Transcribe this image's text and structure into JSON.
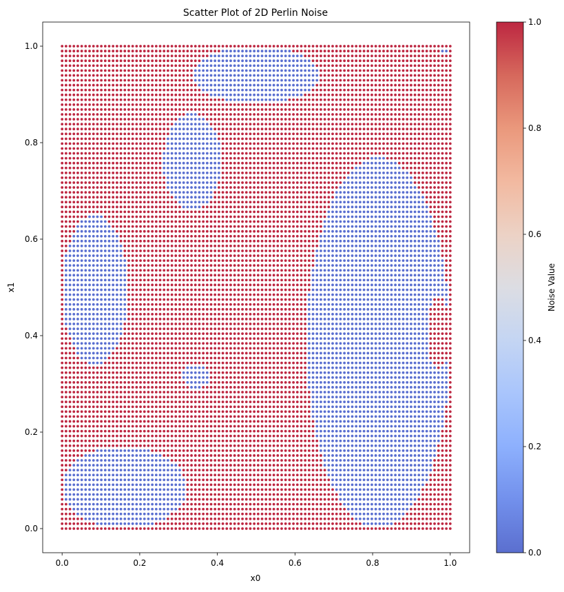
{
  "chart_data": {
    "type": "scatter",
    "title": "Scatter Plot of 2D Perlin Noise",
    "xlabel": "x0",
    "ylabel": "x1",
    "xlim": [
      -0.05,
      1.05
    ],
    "ylim": [
      -0.05,
      1.05
    ],
    "x_ticks": [
      0.0,
      0.2,
      0.4,
      0.6,
      0.8,
      1.0
    ],
    "y_ticks": [
      0.0,
      0.2,
      0.4,
      0.6,
      0.8,
      1.0
    ],
    "x_tick_labels": [
      "0.0",
      "0.2",
      "0.4",
      "0.6",
      "0.8",
      "1.0"
    ],
    "y_tick_labels": [
      "0.0",
      "0.2",
      "0.4",
      "0.6",
      "0.8",
      "1.0"
    ],
    "grid": false,
    "grid_points_per_axis": 100,
    "point_domain": [
      0.0,
      1.0
    ],
    "value_levels": [
      0,
      1
    ],
    "colormap": "coolwarm",
    "colormap_endpoints": {
      "low": "#5a6fd0",
      "high": "#bd2741"
    },
    "colorbar": {
      "label": "Noise Value",
      "range": [
        0.0,
        1.0
      ],
      "ticks": [
        0.0,
        0.2,
        0.4,
        0.6,
        0.8,
        1.0
      ],
      "tick_labels": [
        "0.0",
        "0.2",
        "0.4",
        "0.6",
        "0.8",
        "1.0"
      ]
    },
    "blue_regions_approx": [
      {
        "shape": "blob",
        "x_range": [
          0.34,
          0.66
        ],
        "y_range": [
          0.88,
          1.0
        ]
      },
      {
        "shape": "blob",
        "x_range": [
          0.26,
          0.41
        ],
        "y_range": [
          0.66,
          0.86
        ]
      },
      {
        "shape": "blob",
        "x_range": [
          0.0,
          0.17
        ],
        "y_range": [
          0.34,
          0.65
        ]
      },
      {
        "shape": "blob",
        "x_range": [
          0.31,
          0.38
        ],
        "y_range": [
          0.29,
          0.34
        ]
      },
      {
        "shape": "blob",
        "x_range": [
          0.63,
          1.0
        ],
        "y_range": [
          0.0,
          0.77
        ]
      },
      {
        "shape": "blob",
        "x_range": [
          0.0,
          0.32
        ],
        "y_range": [
          0.0,
          0.17
        ]
      },
      {
        "shape": "blob",
        "x_range": [
          0.97,
          1.0
        ],
        "y_range": [
          0.98,
          1.0
        ]
      }
    ],
    "red_regions_inside_blue_approx": [
      {
        "shape": "blob",
        "x_range": [
          0.94,
          1.0
        ],
        "y_range": [
          0.33,
          0.48
        ]
      }
    ]
  }
}
